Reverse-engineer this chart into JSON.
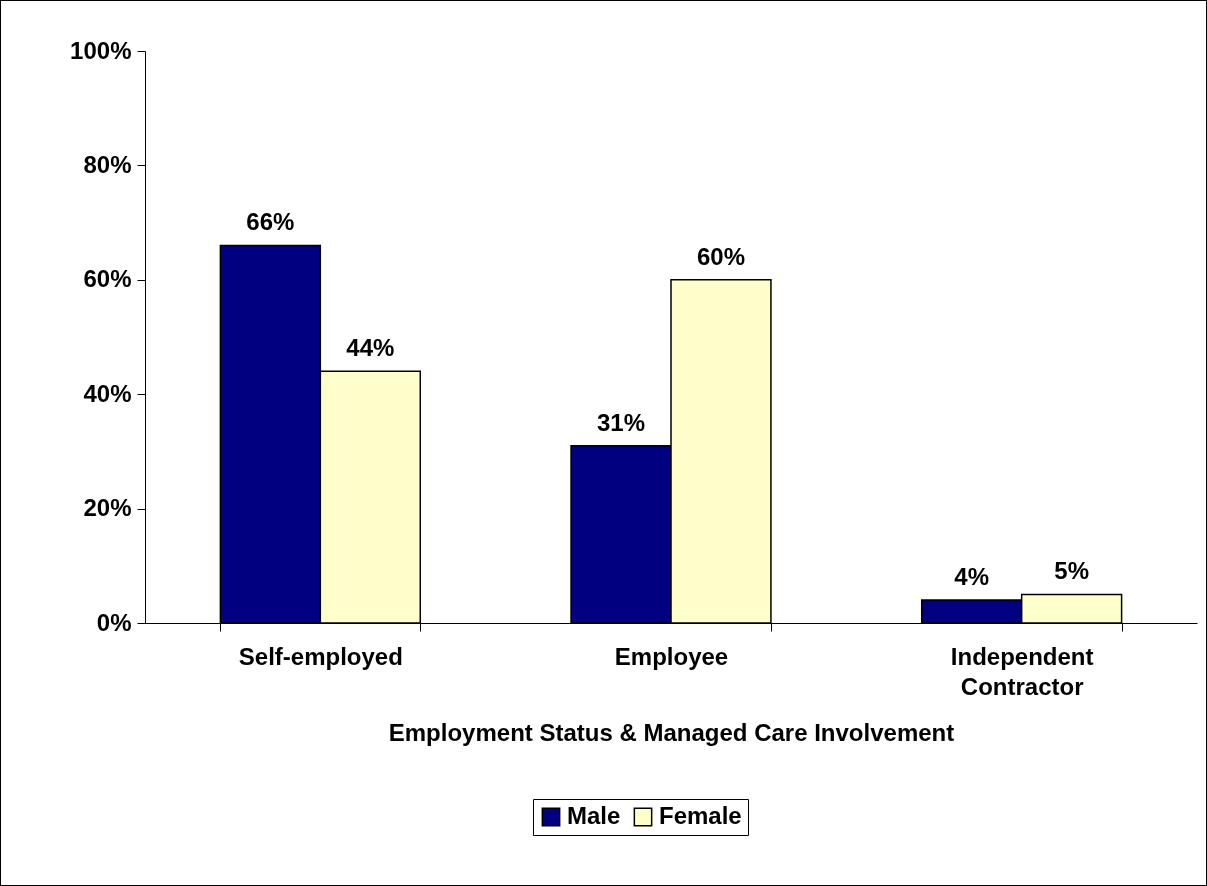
{
  "chart_data": {
    "type": "bar",
    "xlabel": "Employment Status & Managed Care Involvement",
    "categories": [
      "Self-employed",
      "Employee",
      "Independent Contractor"
    ],
    "series": [
      {
        "name": "Male",
        "color": "#000080",
        "values": [
          66,
          31,
          4
        ],
        "value_labels": [
          "66%",
          "31%",
          "4%"
        ]
      },
      {
        "name": "Female",
        "color": "#ffffcc",
        "values": [
          44,
          60,
          5
        ],
        "value_labels": [
          "44%",
          "60%",
          "5%"
        ]
      }
    ],
    "ylim": [
      0,
      100
    ],
    "yticks": [
      {
        "value": 0,
        "label": "0%"
      },
      {
        "value": 20,
        "label": "20%"
      },
      {
        "value": 40,
        "label": "40%"
      },
      {
        "value": 60,
        "label": "60%"
      },
      {
        "value": 80,
        "label": "80%"
      },
      {
        "value": 100,
        "label": "100%"
      }
    ],
    "grid": false,
    "legend": "bottom"
  }
}
